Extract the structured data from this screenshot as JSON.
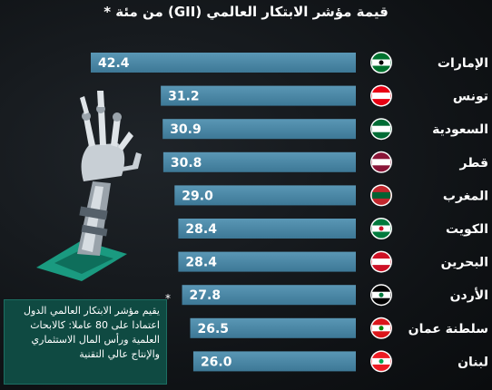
{
  "title": "قيمة مؤشر الابتكار العالمي (GII) من مئة *",
  "note": {
    "star": "*",
    "text": "يقيم مؤشر الابتكار العالمي الدول اعتمادا على 80 عاملا: كالابحاث العلمية ورأس المال الاستثماري والإنتاج عالي التقنية"
  },
  "colors": {
    "bar": "#3d7896",
    "bar_light": "#5a97b5",
    "accent": "#1aa589"
  },
  "chart_data": {
    "type": "bar",
    "orientation": "horizontal",
    "title": "قيمة مؤشر الابتكار العالمي (GII) من مئة *",
    "categories": [
      "الإمارات",
      "تونس",
      "السعودية",
      "قطر",
      "المغرب",
      "الكويت",
      "البحرين",
      "الأردن",
      "سلطنة عمان",
      "لبنان"
    ],
    "values": [
      42.4,
      31.2,
      30.9,
      30.8,
      29.0,
      28.4,
      28.4,
      27.8,
      26.5,
      26.0
    ],
    "value_labels": [
      "42.4",
      "31.2",
      "30.9",
      "30.8",
      "29.0",
      "28.4",
      "28.4",
      "27.8",
      "26.5",
      "26.0"
    ],
    "flags": [
      "uae-flag-icon",
      "tunisia-flag-icon",
      "saudi-flag-icon",
      "qatar-flag-icon",
      "morocco-flag-icon",
      "kuwait-flag-icon",
      "bahrain-flag-icon",
      "jordan-flag-icon",
      "oman-flag-icon",
      "lebanon-flag-icon"
    ],
    "xlabel": "",
    "ylabel": "",
    "grid": false
  }
}
